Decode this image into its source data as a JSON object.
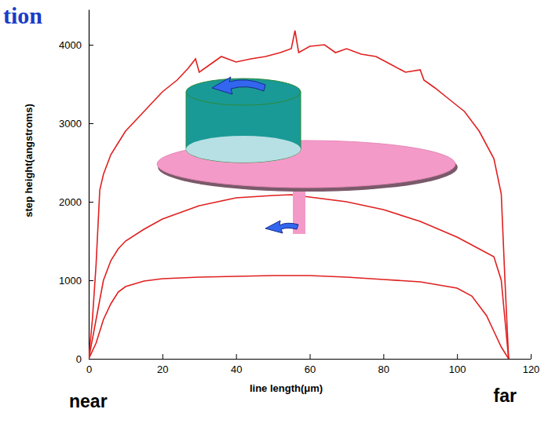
{
  "chart_data": {
    "type": "line",
    "title": "tion",
    "x_label": "line length(μm)",
    "y_label": "step height(angstroms)",
    "annotations": [
      "near",
      "far"
    ],
    "xlim": [
      0,
      120
    ],
    "xticks": [
      0,
      20,
      40,
      60,
      80,
      100,
      120
    ],
    "ylim": [
      0,
      4450
    ],
    "yticks": [
      0,
      1000,
      2000,
      3000,
      4000
    ],
    "grid": false,
    "series": [
      {
        "color": "#e02020",
        "x": [
          0,
          1,
          2,
          3,
          4,
          6,
          8,
          10,
          13,
          16,
          20,
          24,
          27,
          29,
          30,
          33,
          36,
          40,
          44,
          48,
          52,
          55,
          56,
          57,
          60,
          64,
          67,
          70,
          74,
          78,
          82,
          86,
          90,
          91,
          94,
          98,
          102,
          106,
          110,
          112,
          113,
          114
        ],
        "values": [
          0,
          500,
          1200,
          2150,
          2350,
          2600,
          2750,
          2900,
          3050,
          3200,
          3400,
          3550,
          3700,
          3820,
          3650,
          3750,
          3850,
          3780,
          3820,
          3850,
          3900,
          3950,
          4180,
          3900,
          3980,
          4000,
          3900,
          3950,
          3880,
          3850,
          3750,
          3650,
          3680,
          3550,
          3450,
          3300,
          3150,
          2900,
          2550,
          2100,
          1000,
          0
        ]
      },
      {
        "color": "#e02020",
        "x": [
          0,
          2,
          4,
          6,
          8,
          10,
          15,
          20,
          30,
          40,
          50,
          55,
          60,
          70,
          80,
          90,
          100,
          106,
          110,
          112,
          113,
          114
        ],
        "values": [
          0,
          500,
          1000,
          1250,
          1400,
          1500,
          1650,
          1780,
          1950,
          2050,
          2080,
          2090,
          2060,
          2000,
          1900,
          1750,
          1550,
          1400,
          1300,
          1000,
          500,
          0
        ]
      },
      {
        "color": "#e02020",
        "x": [
          0,
          2,
          4,
          6,
          8,
          10,
          15,
          20,
          30,
          40,
          50,
          60,
          70,
          80,
          90,
          100,
          104,
          108,
          110,
          112,
          114
        ],
        "values": [
          0,
          200,
          500,
          700,
          850,
          920,
          990,
          1020,
          1040,
          1050,
          1060,
          1060,
          1040,
          1010,
          980,
          900,
          800,
          550,
          350,
          150,
          0
        ]
      }
    ]
  }
}
